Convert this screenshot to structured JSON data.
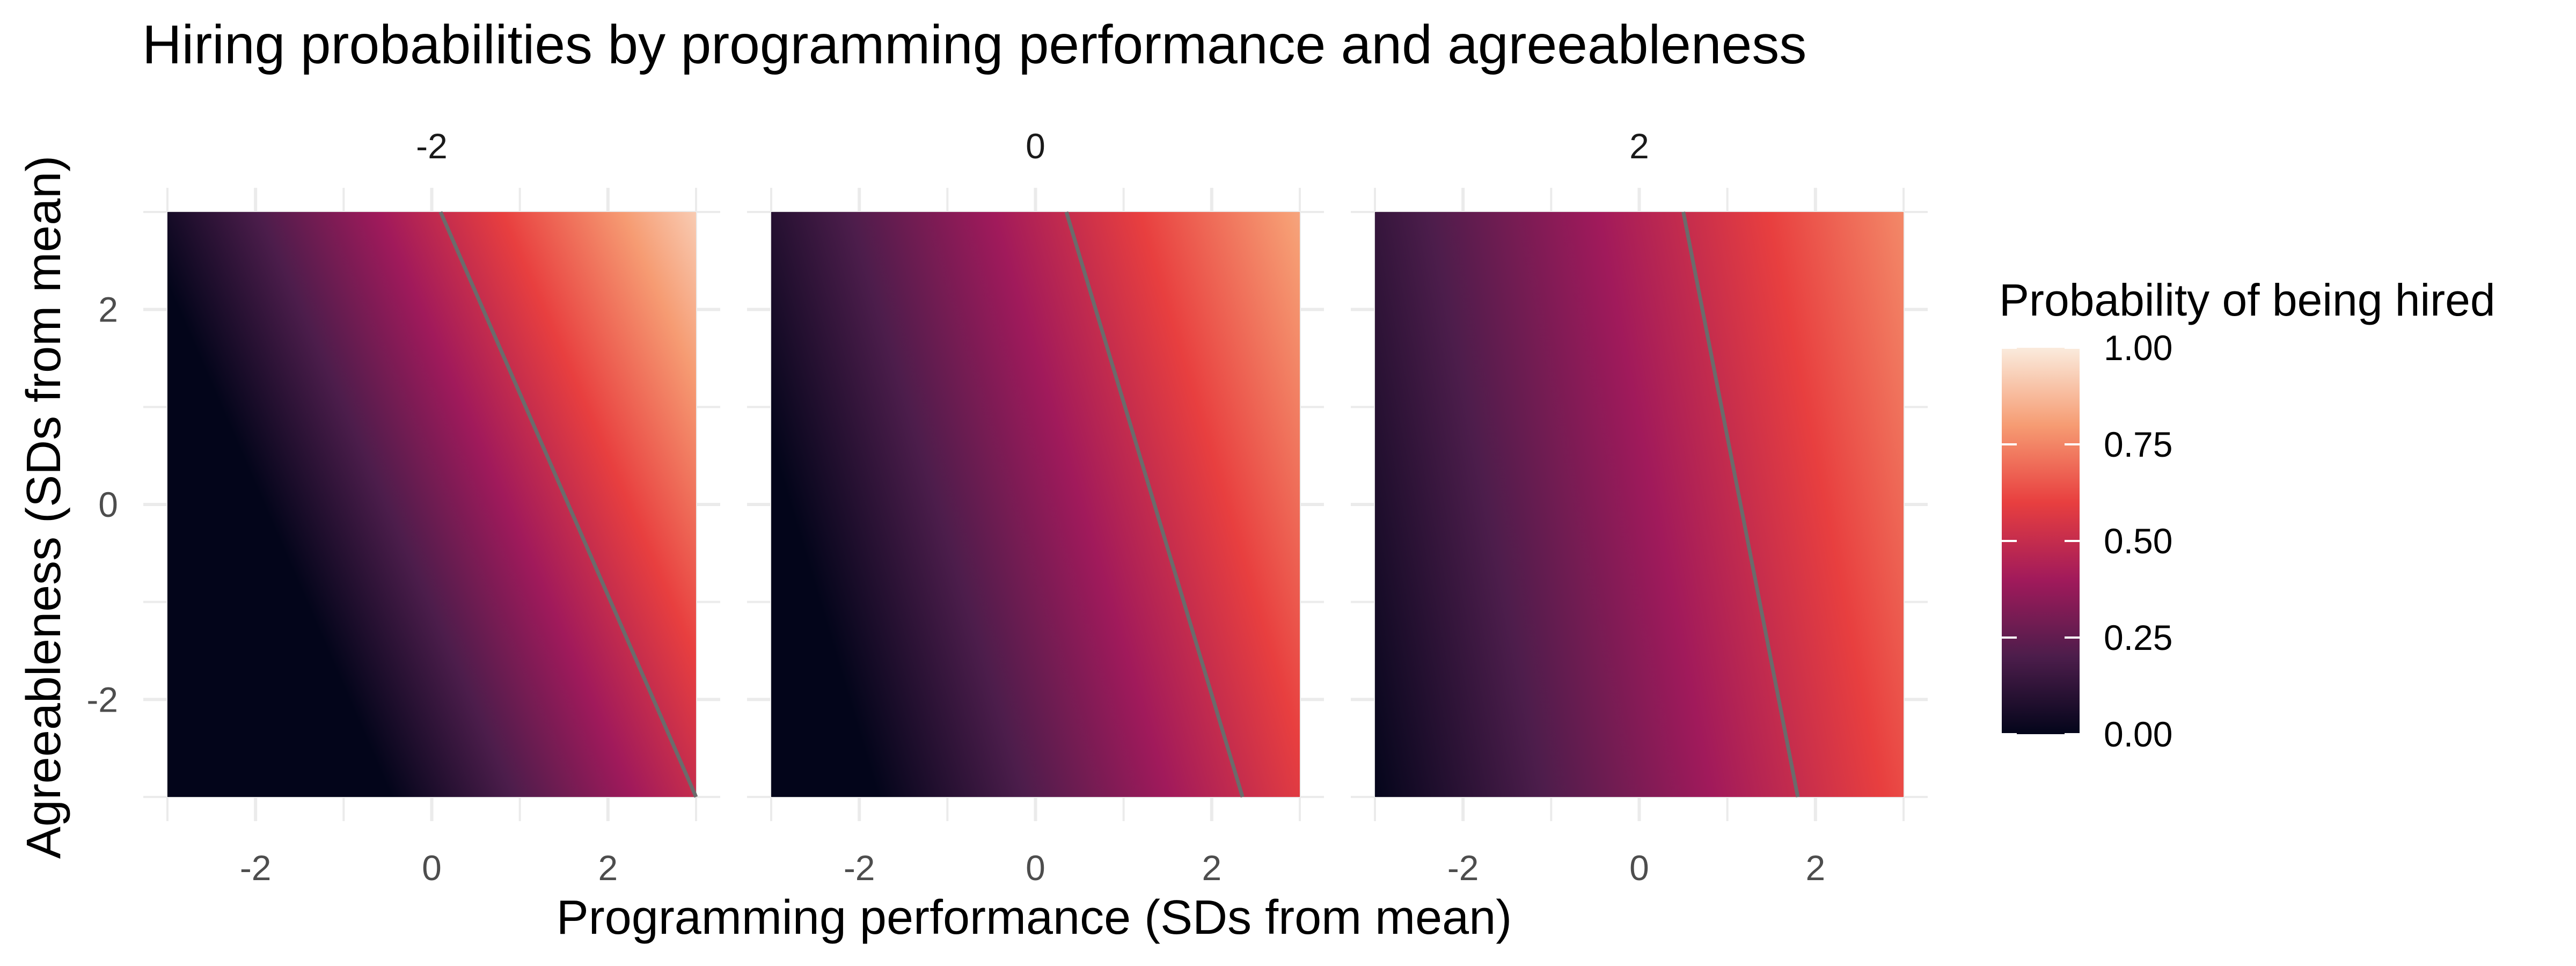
{
  "chart_data": {
    "type": "heatmap",
    "title": "Hiring probabilities by programming performance and agreeableness",
    "xlabel": "Programming performance (SDs from mean)",
    "ylabel": "Agreeableness (SDs from mean)",
    "xlim": [
      -3,
      3
    ],
    "ylim": [
      -3,
      3
    ],
    "x_ticks": [
      -2,
      0,
      2
    ],
    "y_ticks": [
      -2,
      0,
      2
    ],
    "grid": true,
    "facets": [
      {
        "label": "-2",
        "boundary_line": {
          "x_at_y_min": 3.0,
          "x_at_y_max": 0.1
        }
      },
      {
        "label": "0",
        "boundary_line": {
          "x_at_y_min": 2.35,
          "x_at_y_max": 0.35
        }
      },
      {
        "label": "2",
        "boundary_line": {
          "x_at_y_min": 1.8,
          "x_at_y_max": 0.5
        }
      }
    ],
    "boundary_line_color": "#6b6b6b",
    "legend": {
      "title": "Probability of being hired",
      "placement": "right",
      "ticks": [
        "0.00",
        "0.25",
        "0.50",
        "0.75",
        "1.00"
      ],
      "range": [
        0,
        1
      ],
      "colormap": "rocket",
      "colors": [
        "#03051a",
        "#4c1d4b",
        "#a11a5b",
        "#e83f3f",
        "#f69c73",
        "#faebdd"
      ]
    }
  }
}
